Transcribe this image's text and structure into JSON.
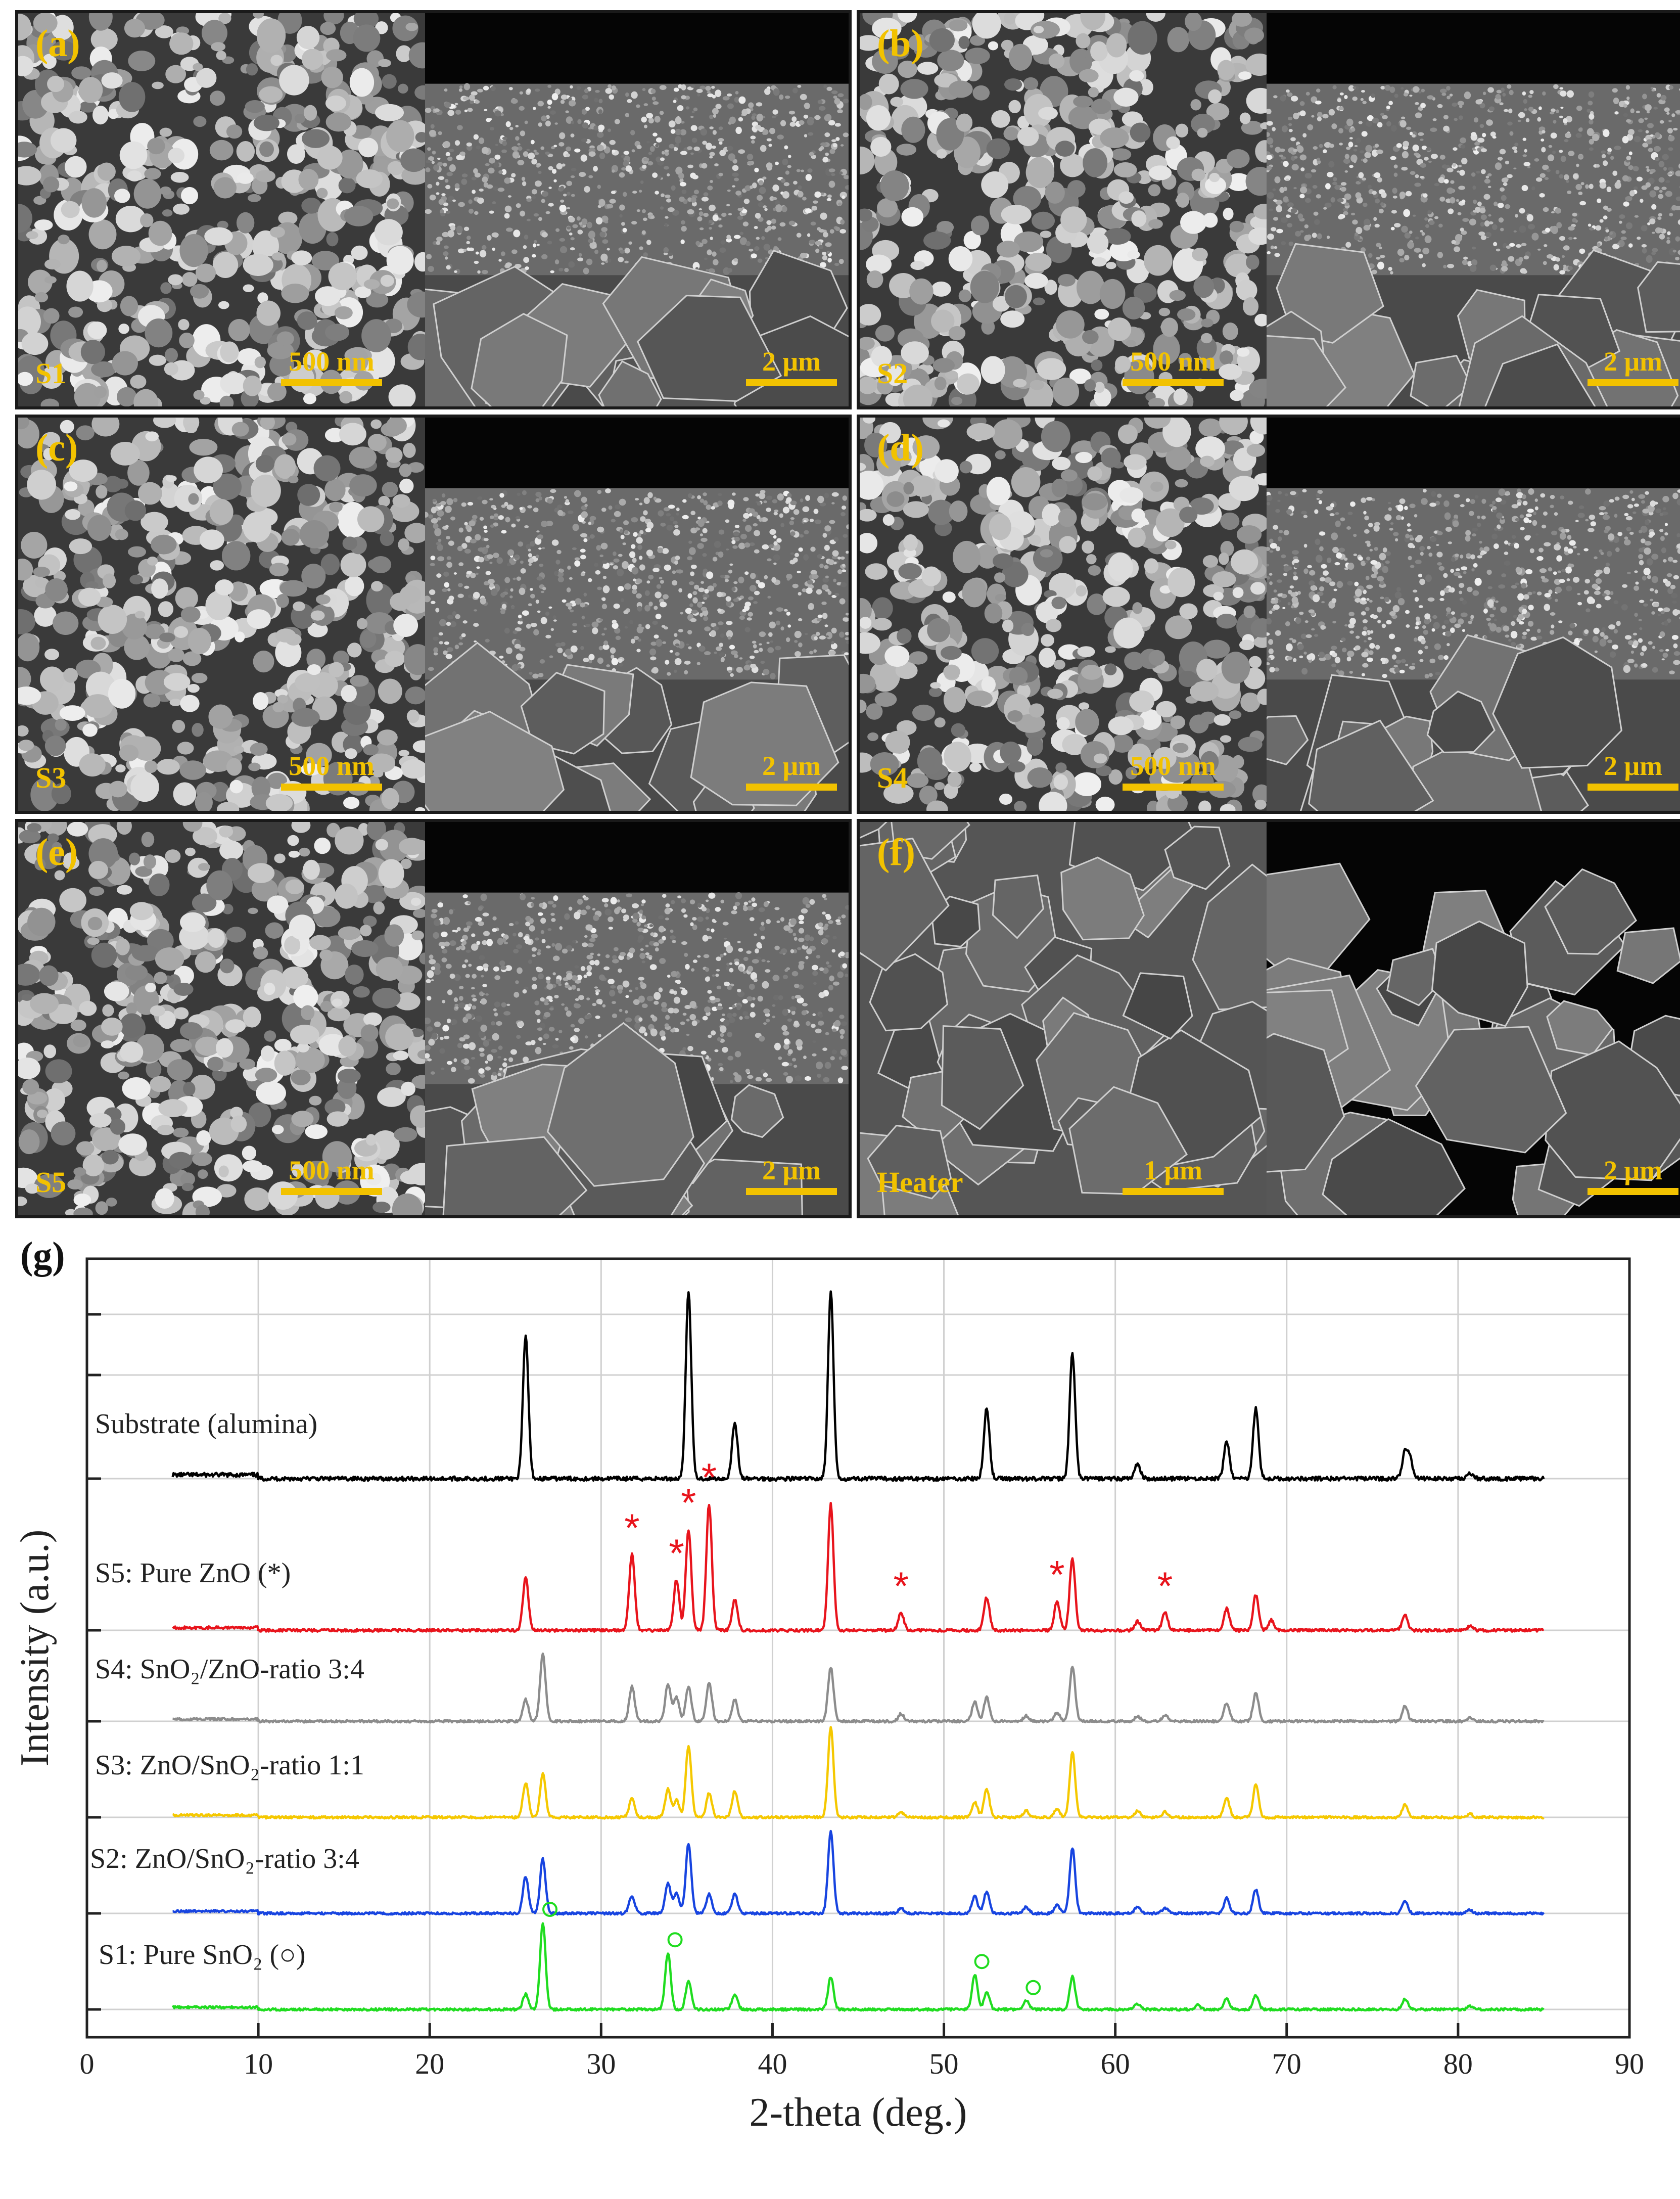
{
  "figure": {
    "panels": [
      {
        "id": "a",
        "label": "(a)",
        "sample": "S1",
        "scale_left": "500 nm",
        "scale_right": "2 μm",
        "kind": "film"
      },
      {
        "id": "b",
        "label": "(b)",
        "sample": "S2",
        "scale_left": "500 nm",
        "scale_right": "2 μm",
        "kind": "film"
      },
      {
        "id": "c",
        "label": "(c)",
        "sample": "S3",
        "scale_left": "500 nm",
        "scale_right": "2 μm",
        "kind": "film"
      },
      {
        "id": "d",
        "label": "(d)",
        "sample": "S4",
        "scale_left": "500 nm",
        "scale_right": "2 μm",
        "kind": "film"
      },
      {
        "id": "e",
        "label": "(e)",
        "sample": "S5",
        "scale_left": "500 nm",
        "scale_right": "2 μm",
        "kind": "film"
      },
      {
        "id": "f",
        "label": "(f)",
        "sample": "Heater",
        "scale_left": "1 μm",
        "scale_right": "2 μm",
        "kind": "heater"
      }
    ],
    "xrd_label": "(g)"
  },
  "chart_data": {
    "type": "line",
    "xlabel": "2-theta (deg.)",
    "ylabel": "Intensity (a.u.)",
    "xlim": [
      0,
      90
    ],
    "xticks": [
      0,
      10,
      20,
      30,
      40,
      50,
      60,
      70,
      80,
      90
    ],
    "grid": true,
    "x_range_measured": [
      5,
      85
    ],
    "y_note": "offset stacked traces, arbitrary units",
    "series": [
      {
        "name": "Substrate (alumina)",
        "color": "#000000",
        "offset": 5,
        "peaks": [
          [
            25.6,
            76
          ],
          [
            35.1,
            100
          ],
          [
            37.8,
            30
          ],
          [
            43.4,
            100
          ],
          [
            52.5,
            38
          ],
          [
            57.5,
            67
          ],
          [
            61.3,
            8
          ],
          [
            66.5,
            20
          ],
          [
            68.2,
            38
          ],
          [
            76.9,
            14
          ],
          [
            77.2,
            10
          ],
          [
            80.7,
            3
          ]
        ]
      },
      {
        "name": "S5: Pure ZnO (*)",
        "color": "#e8141c",
        "offset": 4,
        "peaks": [
          [
            25.6,
            42
          ],
          [
            31.8,
            60
          ],
          [
            34.4,
            40
          ],
          [
            35.1,
            80
          ],
          [
            36.3,
            100
          ],
          [
            37.8,
            24
          ],
          [
            43.4,
            100
          ],
          [
            47.5,
            14
          ],
          [
            52.5,
            26
          ],
          [
            56.6,
            23
          ],
          [
            57.5,
            57
          ],
          [
            61.3,
            7
          ],
          [
            62.9,
            14
          ],
          [
            66.5,
            17
          ],
          [
            68.2,
            28
          ],
          [
            69.1,
            8
          ],
          [
            76.9,
            12
          ],
          [
            80.7,
            3
          ]
        ]
      },
      {
        "name": "S4: SnO₂/ZnO-ratio 3:4",
        "color": "#8c8c8c",
        "offset": 3,
        "peaks": [
          [
            25.6,
            20
          ],
          [
            26.6,
            62
          ],
          [
            31.8,
            32
          ],
          [
            33.9,
            34
          ],
          [
            34.4,
            22
          ],
          [
            35.1,
            32
          ],
          [
            36.3,
            36
          ],
          [
            37.8,
            20
          ],
          [
            43.4,
            50
          ],
          [
            47.5,
            7
          ],
          [
            51.8,
            18
          ],
          [
            52.5,
            22
          ],
          [
            54.8,
            5
          ],
          [
            56.6,
            8
          ],
          [
            57.5,
            50
          ],
          [
            61.3,
            5
          ],
          [
            62.9,
            6
          ],
          [
            66.5,
            17
          ],
          [
            68.2,
            26
          ],
          [
            76.9,
            14
          ],
          [
            80.7,
            3
          ]
        ]
      },
      {
        "name": "S3: ZnO/SnO₂-ratio 1:1",
        "color": "#f5c800",
        "offset": 2,
        "peaks": [
          [
            25.6,
            32
          ],
          [
            26.6,
            40
          ],
          [
            31.8,
            18
          ],
          [
            33.9,
            26
          ],
          [
            34.4,
            16
          ],
          [
            35.1,
            66
          ],
          [
            36.3,
            22
          ],
          [
            37.8,
            24
          ],
          [
            43.4,
            83
          ],
          [
            47.5,
            5
          ],
          [
            51.8,
            14
          ],
          [
            52.5,
            26
          ],
          [
            54.8,
            6
          ],
          [
            56.6,
            8
          ],
          [
            57.5,
            60
          ],
          [
            61.3,
            6
          ],
          [
            62.9,
            5
          ],
          [
            66.5,
            18
          ],
          [
            68.2,
            30
          ],
          [
            76.9,
            12
          ],
          [
            80.7,
            3
          ]
        ]
      },
      {
        "name": "S2: ZnO/SnO₂-ratio 3:4",
        "color": "#1744e0",
        "offset": 1,
        "peaks": [
          [
            25.6,
            34
          ],
          [
            26.6,
            50
          ],
          [
            31.8,
            16
          ],
          [
            33.9,
            28
          ],
          [
            34.4,
            18
          ],
          [
            35.1,
            64
          ],
          [
            36.3,
            18
          ],
          [
            37.8,
            18
          ],
          [
            43.4,
            76
          ],
          [
            47.5,
            5
          ],
          [
            51.8,
            16
          ],
          [
            52.5,
            20
          ],
          [
            54.8,
            6
          ],
          [
            56.6,
            8
          ],
          [
            57.5,
            60
          ],
          [
            61.3,
            6
          ],
          [
            62.9,
            5
          ],
          [
            66.5,
            14
          ],
          [
            68.2,
            22
          ],
          [
            76.9,
            12
          ],
          [
            80.7,
            3
          ]
        ]
      },
      {
        "name": "S1: Pure SnO₂ (○)",
        "color": "#1fdc1f",
        "offset": 0,
        "peaks": [
          [
            25.6,
            14
          ],
          [
            26.6,
            80
          ],
          [
            33.9,
            52
          ],
          [
            35.1,
            26
          ],
          [
            37.8,
            14
          ],
          [
            43.4,
            30
          ],
          [
            51.8,
            32
          ],
          [
            52.5,
            16
          ],
          [
            54.8,
            8
          ],
          [
            57.5,
            30
          ],
          [
            61.3,
            5
          ],
          [
            64.8,
            4
          ],
          [
            66.5,
            10
          ],
          [
            68.2,
            13
          ],
          [
            76.9,
            10
          ],
          [
            80.7,
            3
          ]
        ]
      }
    ],
    "annotations": [
      {
        "series": "S5: Pure ZnO (*)",
        "symbol": "*",
        "x": [
          31.8,
          34.4,
          35.1,
          36.3,
          47.5,
          56.6,
          62.9
        ]
      },
      {
        "series": "S1: Pure SnO₂ (○)",
        "symbol": "○",
        "x": [
          26.6,
          33.9,
          51.8,
          54.8
        ]
      }
    ],
    "legend_placement": "inline left, labels above each trace"
  }
}
